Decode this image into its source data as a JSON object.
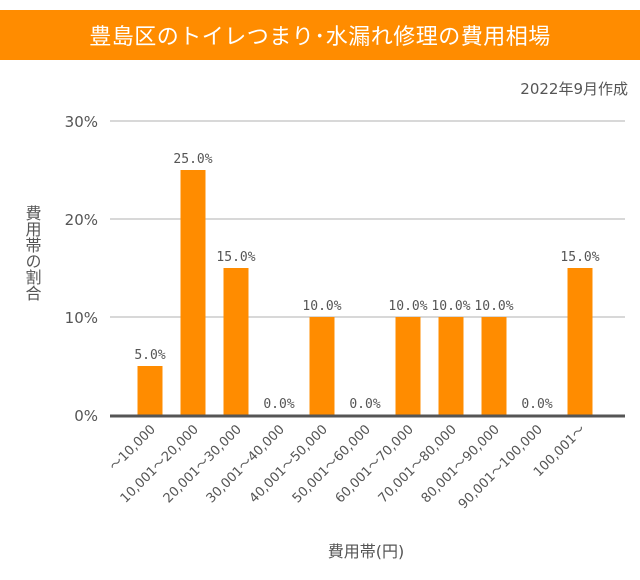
{
  "title": "豊島区のトイレつまり･水漏れ修理の費用相場",
  "created": "2022年9月作成",
  "colors": {
    "bar": "#ff8c00",
    "title_bg": "#ff8c00",
    "grid": "#cccccc",
    "axis": "#555555"
  },
  "chart_data": {
    "type": "bar",
    "title": "豊島区のトイレつまり･水漏れ修理の費用相場",
    "xlabel": "費用帯(円)",
    "ylabel": "費用帯の割合",
    "ylim": [
      0,
      30
    ],
    "yticks": [
      "0%",
      "10%",
      "20%",
      "30%"
    ],
    "ytick_values": [
      0,
      10,
      20,
      30
    ],
    "grid": true,
    "categories": [
      "～10,000",
      "10,001～20,000",
      "20,001～30,000",
      "30,001～40,000",
      "40,001～50,000",
      "50,001～60,000",
      "60,001～70,000",
      "70,001～80,000",
      "80,001～90,000",
      "90,001～100,000",
      "100,001～"
    ],
    "values": [
      5.0,
      25.0,
      15.0,
      0.0,
      10.0,
      0.0,
      10.0,
      10.0,
      10.0,
      0.0,
      15.0
    ],
    "data_labels": [
      "5.0%",
      "25.0%",
      "15.0%",
      "0.0%",
      "10.0%",
      "0.0%",
      "10.0%",
      "10.0%",
      "10.0%",
      "0.0%",
      "15.0%"
    ]
  }
}
